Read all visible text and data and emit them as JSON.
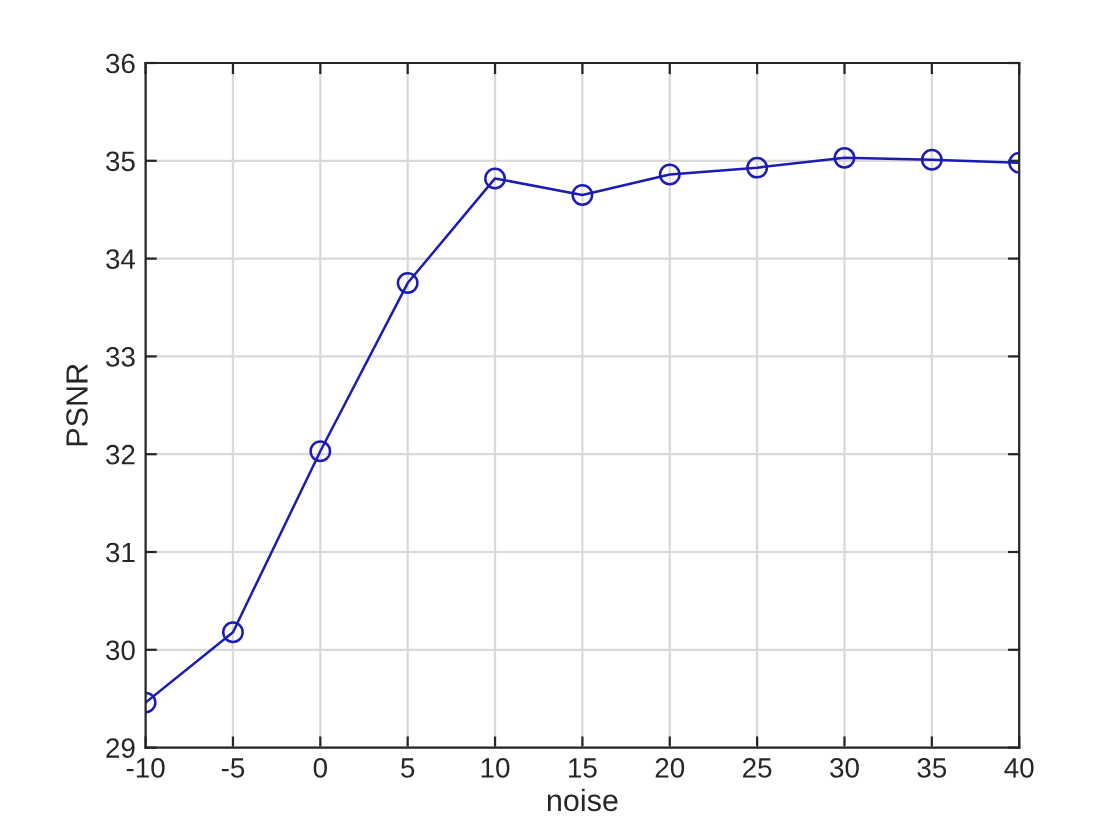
{
  "chart_data": {
    "type": "line",
    "xlabel": "noise",
    "ylabel": "PSNR",
    "x": [
      -10,
      -5,
      0,
      5,
      10,
      15,
      20,
      25,
      30,
      35,
      40
    ],
    "series": [
      {
        "color": "#1c1cb4",
        "values": [
          29.46,
          30.18,
          32.03,
          33.75,
          34.82,
          34.65,
          34.86,
          34.93,
          35.03,
          35.01,
          34.98
        ]
      }
    ],
    "xlim": [
      -10,
      40
    ],
    "xticks": [
      -10,
      -5,
      0,
      5,
      10,
      15,
      20,
      25,
      30,
      35,
      40
    ],
    "ylim": [
      29,
      36
    ],
    "yticks": [
      29,
      30,
      31,
      32,
      33,
      34,
      35,
      36
    ],
    "grid": true,
    "marker": "circle",
    "line_style": "solid"
  }
}
